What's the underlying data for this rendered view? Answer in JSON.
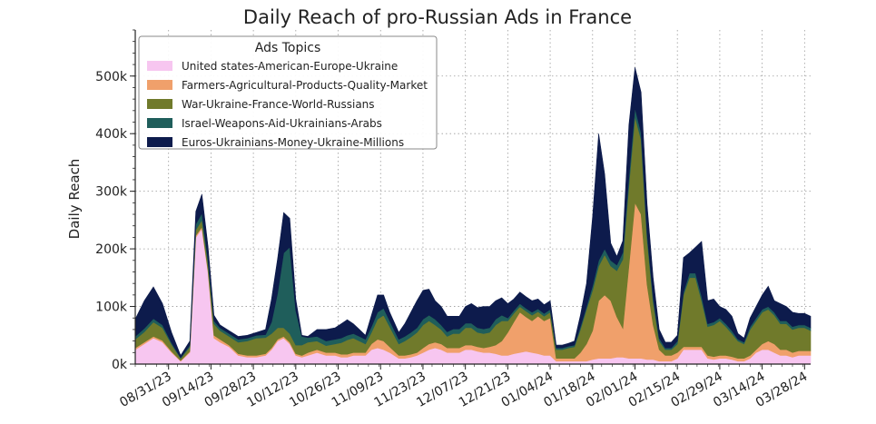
{
  "chart_data": {
    "type": "area",
    "stacked": true,
    "title": "Daily Reach of pro-Russian Ads in France",
    "xlabel": "",
    "ylabel": "Daily Reach",
    "ylim": [
      0,
      580000
    ],
    "yticks": [
      0,
      100000,
      200000,
      300000,
      400000,
      500000
    ],
    "ytick_labels": [
      "0k",
      "100k",
      "200k",
      "300k",
      "400k",
      "500k"
    ],
    "x_start": "08/20/23",
    "x_end": "03/31/24",
    "xtick_positions": [
      11,
      25,
      39,
      53,
      67,
      81,
      95,
      109,
      123,
      137,
      151,
      165,
      179,
      193,
      207,
      221
    ],
    "xtick_labels": [
      "08/31/23",
      "09/14/23",
      "09/28/23",
      "10/12/23",
      "10/26/23",
      "11/09/23",
      "11/23/23",
      "12/07/23",
      "12/21/23",
      "01/04/24",
      "01/18/24",
      "02/01/24",
      "02/15/24",
      "02/29/24",
      "03/14/24",
      "03/28/24"
    ],
    "grid": true,
    "legend": {
      "title": "Ads Topics",
      "position": "top-left"
    },
    "x_days": [
      0,
      3,
      6,
      9,
      12,
      15,
      18,
      20,
      22,
      24,
      26,
      28,
      31,
      34,
      37,
      40,
      43,
      45,
      47,
      49,
      51,
      53,
      55,
      57,
      60,
      63,
      66,
      68,
      70,
      72,
      74,
      76,
      78,
      80,
      82,
      84,
      87,
      89,
      91,
      93,
      95,
      97,
      99,
      101,
      103,
      105,
      107,
      109,
      111,
      113,
      115,
      117,
      119,
      121,
      123,
      125,
      127,
      129,
      131,
      133,
      135,
      137,
      139,
      141,
      143,
      145,
      147,
      149,
      151,
      153,
      155,
      157,
      159,
      161,
      163,
      165,
      167,
      169,
      171,
      173,
      175,
      177,
      179,
      181,
      183,
      185,
      187,
      189,
      191,
      193,
      195,
      197,
      199,
      201,
      203,
      205,
      207,
      209,
      211,
      213,
      215,
      217,
      219,
      221,
      223
    ],
    "series": [
      {
        "name": "United states-American-Europe-Ukraine",
        "color": "#f7c6f0",
        "values": [
          25000,
          35000,
          45000,
          38000,
          20000,
          5000,
          20000,
          220000,
          235000,
          160000,
          45000,
          38000,
          30000,
          15000,
          12000,
          12000,
          15000,
          25000,
          40000,
          45000,
          35000,
          15000,
          12000,
          15000,
          20000,
          15000,
          15000,
          12000,
          12000,
          15000,
          15000,
          15000,
          25000,
          28000,
          25000,
          20000,
          10000,
          10000,
          12000,
          15000,
          20000,
          25000,
          28000,
          25000,
          20000,
          20000,
          20000,
          25000,
          25000,
          22000,
          20000,
          20000,
          18000,
          15000,
          15000,
          18000,
          20000,
          22000,
          20000,
          18000,
          15000,
          15000,
          5000,
          5000,
          5000,
          5000,
          5000,
          5000,
          8000,
          10000,
          10000,
          10000,
          12000,
          12000,
          10000,
          10000,
          10000,
          8000,
          8000,
          5000,
          5000,
          5000,
          10000,
          25000,
          25000,
          25000,
          25000,
          10000,
          8000,
          10000,
          10000,
          8000,
          5000,
          5000,
          10000,
          20000,
          25000,
          25000,
          20000,
          15000,
          15000,
          12000,
          15000,
          15000,
          15000
        ]
      },
      {
        "name": "Farmers-Agricultural-Products-Quality-Market",
        "color": "#f0a06b",
        "values": [
          3000,
          3000,
          3000,
          3000,
          2000,
          1000,
          2000,
          3000,
          3000,
          3000,
          5000,
          5000,
          3000,
          3000,
          3000,
          3000,
          3000,
          3000,
          3000,
          3000,
          3000,
          3000,
          3000,
          5000,
          5000,
          5000,
          5000,
          5000,
          5000,
          5000,
          5000,
          5000,
          10000,
          15000,
          15000,
          10000,
          5000,
          5000,
          5000,
          5000,
          8000,
          10000,
          10000,
          10000,
          8000,
          8000,
          8000,
          8000,
          8000,
          8000,
          8000,
          10000,
          15000,
          25000,
          40000,
          55000,
          70000,
          60000,
          55000,
          65000,
          60000,
          65000,
          5000,
          5000,
          5000,
          5000,
          15000,
          30000,
          50000,
          100000,
          110000,
          100000,
          70000,
          50000,
          160000,
          270000,
          250000,
          130000,
          60000,
          20000,
          10000,
          10000,
          10000,
          5000,
          5000,
          5000,
          5000,
          5000,
          5000,
          5000,
          5000,
          5000,
          5000,
          5000,
          5000,
          5000,
          10000,
          15000,
          15000,
          10000,
          10000,
          8000,
          8000,
          8000,
          8000
        ]
      },
      {
        "name": "War-Ukraine-France-World-Russians",
        "color": "#707a2b",
        "values": [
          15000,
          18000,
          25000,
          22000,
          12000,
          4000,
          8000,
          10000,
          12000,
          12000,
          20000,
          15000,
          15000,
          20000,
          25000,
          30000,
          28000,
          25000,
          20000,
          15000,
          15000,
          15000,
          18000,
          18000,
          15000,
          12000,
          15000,
          20000,
          25000,
          25000,
          20000,
          15000,
          20000,
          35000,
          45000,
          35000,
          20000,
          25000,
          30000,
          35000,
          40000,
          40000,
          30000,
          25000,
          20000,
          25000,
          25000,
          30000,
          30000,
          25000,
          25000,
          25000,
          35000,
          35000,
          20000,
          15000,
          10000,
          10000,
          10000,
          8000,
          8000,
          10000,
          15000,
          15000,
          18000,
          20000,
          40000,
          60000,
          70000,
          60000,
          70000,
          60000,
          80000,
          120000,
          140000,
          150000,
          130000,
          80000,
          40000,
          15000,
          10000,
          10000,
          15000,
          90000,
          120000,
          120000,
          80000,
          50000,
          55000,
          60000,
          50000,
          40000,
          30000,
          25000,
          45000,
          50000,
          55000,
          55000,
          50000,
          45000,
          45000,
          40000,
          40000,
          40000,
          35000
        ]
      },
      {
        "name": "Israel-Weapons-Aid-Ukrainians-Arabs",
        "color": "#1f5e5b",
        "values": [
          5000,
          6000,
          6000,
          5000,
          3000,
          1000,
          3000,
          10000,
          12000,
          8000,
          5000,
          5000,
          5000,
          5000,
          5000,
          5000,
          5000,
          20000,
          60000,
          130000,
          150000,
          60000,
          15000,
          8000,
          8000,
          8000,
          8000,
          8000,
          8000,
          8000,
          8000,
          8000,
          10000,
          12000,
          12000,
          10000,
          8000,
          8000,
          8000,
          8000,
          10000,
          10000,
          10000,
          8000,
          8000,
          8000,
          8000,
          8000,
          8000,
          8000,
          8000,
          8000,
          10000,
          10000,
          5000,
          5000,
          5000,
          5000,
          5000,
          5000,
          5000,
          5000,
          3000,
          3000,
          3000,
          3000,
          5000,
          5000,
          8000,
          10000,
          10000,
          10000,
          10000,
          12000,
          15000,
          15000,
          12000,
          10000,
          8000,
          5000,
          3000,
          3000,
          5000,
          5000,
          8000,
          8000,
          8000,
          5000,
          5000,
          5000,
          5000,
          5000,
          3000,
          3000,
          5000,
          5000,
          5000,
          5000,
          5000,
          5000,
          5000,
          5000,
          5000,
          5000,
          5000
        ]
      },
      {
        "name": "Euros-Ukrainians-Money-Ukraine-Millions",
        "color": "#0d1b4c",
        "values": [
          30000,
          48000,
          55000,
          37000,
          18000,
          4000,
          7000,
          22000,
          33000,
          22000,
          10000,
          5000,
          5000,
          5000,
          5000,
          5000,
          9000,
          40000,
          60000,
          70000,
          50000,
          20000,
          2000,
          2000,
          12000,
          20000,
          20000,
          25000,
          27000,
          17000,
          12000,
          7000,
          20000,
          30000,
          23000,
          15000,
          12000,
          22000,
          35000,
          47000,
          50000,
          45000,
          32000,
          32000,
          27000,
          22000,
          22000,
          29000,
          34000,
          35000,
          39000,
          37000,
          32000,
          30000,
          25000,
          20000,
          20000,
          20000,
          20000,
          17000,
          15000,
          15000,
          5000,
          5000,
          5000,
          7000,
          20000,
          40000,
          120000,
          220000,
          130000,
          30000,
          15000,
          20000,
          90000,
          70000,
          70000,
          50000,
          34000,
          15000,
          10000,
          10000,
          10000,
          60000,
          35000,
          45000,
          95000,
          40000,
          40000,
          20000,
          25000,
          25000,
          10000,
          7000,
          15000,
          20000,
          25000,
          35000,
          20000,
          30000,
          25000,
          25000,
          20000,
          20000,
          20000
        ]
      }
    ]
  }
}
